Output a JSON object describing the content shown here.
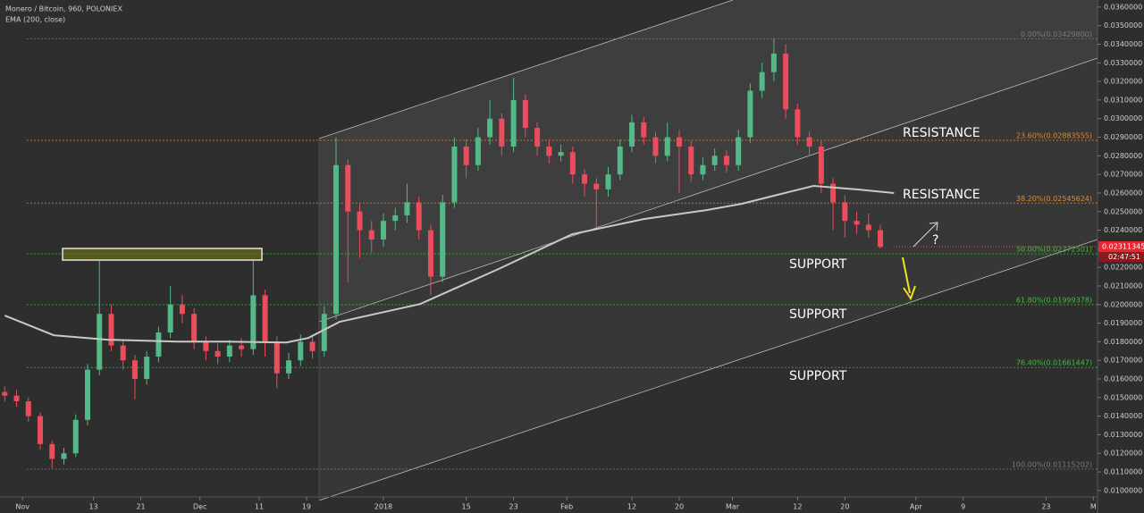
{
  "chart_data": {
    "type": "candlestick",
    "title": "Monero / Bitcoin, 960, POLONIEX",
    "up_color": "#53b987",
    "down_color": "#eb4d5c",
    "candles": {
      "x": [
        -3,
        -1,
        1,
        3,
        5,
        7,
        9,
        11,
        13,
        15,
        17,
        19,
        21,
        23,
        25,
        27,
        29,
        31,
        33,
        35,
        37,
        39,
        41,
        43,
        45,
        47,
        49,
        51,
        53,
        55,
        57,
        59,
        61,
        63,
        65,
        67,
        69,
        71,
        73,
        75,
        77,
        79,
        81,
        83,
        85,
        87,
        89,
        91,
        93,
        95,
        97,
        99,
        101,
        103,
        105,
        107,
        109,
        111,
        113,
        115,
        117,
        119,
        121,
        123,
        125,
        127,
        129,
        131,
        133,
        135,
        137,
        139,
        141,
        143,
        145
      ],
      "open": [
        0.0153,
        0.0151,
        0.0148,
        0.014,
        0.0125,
        0.0117,
        0.012,
        0.0138,
        0.0165,
        0.0195,
        0.0178,
        0.017,
        0.016,
        0.0172,
        0.0185,
        0.02,
        0.0195,
        0.018,
        0.0175,
        0.0172,
        0.0178,
        0.0176,
        0.0205,
        0.018,
        0.0163,
        0.017,
        0.018,
        0.0175,
        0.0195,
        0.0275,
        0.025,
        0.024,
        0.0235,
        0.0245,
        0.0248,
        0.0255,
        0.024,
        0.0215,
        0.0255,
        0.0285,
        0.0275,
        0.029,
        0.03,
        0.0285,
        0.031,
        0.0295,
        0.0285,
        0.028,
        0.0282,
        0.027,
        0.0265,
        0.0262,
        0.027,
        0.0285,
        0.0298,
        0.029,
        0.028,
        0.029,
        0.0285,
        0.027,
        0.0275,
        0.028,
        0.0275,
        0.029,
        0.0315,
        0.0325,
        0.0335,
        0.0305,
        0.029,
        0.0285,
        0.0265,
        0.0255,
        0.0245,
        0.0243,
        0.024
      ],
      "high": [
        0.0156,
        0.0154,
        0.015,
        0.0142,
        0.0127,
        0.0123,
        0.0141,
        0.0168,
        0.0224,
        0.02,
        0.0181,
        0.0173,
        0.0175,
        0.0188,
        0.021,
        0.0205,
        0.0198,
        0.0183,
        0.0179,
        0.0181,
        0.0182,
        0.0224,
        0.0208,
        0.0183,
        0.0174,
        0.0184,
        0.0183,
        0.0199,
        0.029,
        0.0278,
        0.0254,
        0.0245,
        0.0249,
        0.0252,
        0.0265,
        0.0258,
        0.0243,
        0.0259,
        0.029,
        0.0289,
        0.0295,
        0.031,
        0.0303,
        0.0322,
        0.0313,
        0.0298,
        0.0289,
        0.0286,
        0.0285,
        0.0273,
        0.0268,
        0.0274,
        0.0289,
        0.0302,
        0.0301,
        0.0293,
        0.0298,
        0.0294,
        0.0288,
        0.0279,
        0.0284,
        0.0283,
        0.0294,
        0.0319,
        0.033,
        0.0343,
        0.034,
        0.0308,
        0.0293,
        0.0288,
        0.0268,
        0.0259,
        0.025,
        0.0249,
        0.0243
      ],
      "low": [
        0.0148,
        0.0145,
        0.0137,
        0.0122,
        0.0112,
        0.0114,
        0.0118,
        0.0135,
        0.0162,
        0.0175,
        0.0165,
        0.0149,
        0.0157,
        0.0169,
        0.0182,
        0.019,
        0.0176,
        0.017,
        0.0168,
        0.0169,
        0.0172,
        0.0173,
        0.0172,
        0.0155,
        0.016,
        0.0167,
        0.0171,
        0.0172,
        0.0192,
        0.0212,
        0.0225,
        0.0228,
        0.0231,
        0.024,
        0.0244,
        0.0235,
        0.0205,
        0.0212,
        0.0252,
        0.0268,
        0.0272,
        0.0286,
        0.028,
        0.0282,
        0.029,
        0.028,
        0.0276,
        0.0277,
        0.0265,
        0.0258,
        0.024,
        0.0258,
        0.0267,
        0.0282,
        0.0286,
        0.0276,
        0.0277,
        0.026,
        0.0266,
        0.0267,
        0.0272,
        0.0271,
        0.0272,
        0.0287,
        0.0311,
        0.032,
        0.03,
        0.0286,
        0.028,
        0.026,
        0.024,
        0.0236,
        0.0238,
        0.0236,
        0.023
      ],
      "close": [
        0.0151,
        0.0148,
        0.014,
        0.0125,
        0.0117,
        0.012,
        0.0138,
        0.0165,
        0.0195,
        0.0178,
        0.017,
        0.016,
        0.0172,
        0.0185,
        0.02,
        0.0195,
        0.018,
        0.0175,
        0.0172,
        0.0178,
        0.0176,
        0.0205,
        0.018,
        0.0163,
        0.017,
        0.018,
        0.0175,
        0.0195,
        0.0275,
        0.025,
        0.024,
        0.0235,
        0.0245,
        0.0248,
        0.0255,
        0.024,
        0.0215,
        0.0255,
        0.0285,
        0.0275,
        0.029,
        0.03,
        0.0285,
        0.031,
        0.0295,
        0.0285,
        0.028,
        0.0282,
        0.027,
        0.0265,
        0.0262,
        0.027,
        0.0285,
        0.0298,
        0.029,
        0.028,
        0.029,
        0.0285,
        0.027,
        0.0275,
        0.028,
        0.0275,
        0.029,
        0.0315,
        0.0325,
        0.0335,
        0.0305,
        0.029,
        0.0285,
        0.0265,
        0.0255,
        0.0245,
        0.0243,
        0.024,
        0.0231
      ]
    },
    "ema": {
      "name": "EMA (200, close)",
      "color": "#c8c8c8",
      "x": [
        -3.0,
        5.3,
        14.4,
        26.4,
        34.0,
        44.6,
        48.3,
        53.6,
        67.2,
        80.8,
        92.9,
        105.0,
        115.6,
        121.6,
        127.6,
        133.7,
        141.2,
        147.3
      ],
      "values": [
        0.01941,
        0.01835,
        0.01811,
        0.01801,
        0.01801,
        0.01796,
        0.0182,
        0.01907,
        0.02003,
        0.02196,
        0.02378,
        0.0246,
        0.02508,
        0.02542,
        0.0259,
        0.02638,
        0.02619,
        0.026
      ]
    },
    "fib_levels": [
      {
        "label": "0.00%(0.03429800)",
        "value": 0.034298,
        "color": "#7a7a7a"
      },
      {
        "label": "23.60%(0.02883555)",
        "value": 0.02883555,
        "color": "#e08a2c"
      },
      {
        "label": "38.20%(0.02545624)",
        "value": 0.02545624,
        "color": "#e08a2c"
      },
      {
        "label": "50.00%(0.02272501)",
        "value": 0.02272501,
        "color": "#3cc03c"
      },
      {
        "label": "61.80%(0.01999378)",
        "value": 0.01999378,
        "color": "#3cc03c"
      },
      {
        "label": "76.40%(0.01661447)",
        "value": 0.01661447,
        "color": "#3cc03c"
      },
      {
        "label": "100.00%(0.01115202)",
        "value": 0.01115202,
        "color": "#7a7a7a"
      }
    ],
    "annotations": [
      "RESISTANCE",
      "RESISTANCE",
      "SUPPORT",
      "SUPPORT",
      "SUPPORT",
      "?"
    ],
    "last_price": 0.02311345,
    "countdown": "02:47:51",
    "xlim": [
      -3.8,
      181.7
    ],
    "ylim": [
      0.00879,
      0.03638
    ],
    "xticks": [
      {
        "value": 0,
        "label": "Nov"
      },
      {
        "value": 12,
        "label": "13"
      },
      {
        "value": 20,
        "label": "21"
      },
      {
        "value": 30,
        "label": "Dec"
      },
      {
        "value": 40,
        "label": "11"
      },
      {
        "value": 48,
        "label": "19"
      },
      {
        "value": 61,
        "label": "2018"
      },
      {
        "value": 75,
        "label": "15"
      },
      {
        "value": 83,
        "label": "23"
      },
      {
        "value": 92,
        "label": "Feb"
      },
      {
        "value": 103,
        "label": "12"
      },
      {
        "value": 111,
        "label": "20"
      },
      {
        "value": 120,
        "label": "Mar"
      },
      {
        "value": 131,
        "label": "12"
      },
      {
        "value": 139,
        "label": "20"
      },
      {
        "value": 151,
        "label": "Apr"
      },
      {
        "value": 159,
        "label": "9"
      },
      {
        "value": 173,
        "label": "23"
      },
      {
        "value": 181,
        "label": "M"
      }
    ],
    "yticks": [
      {
        "value": 0.01,
        "label": "0.0100000"
      },
      {
        "value": 0.011,
        "label": "0.0110000"
      },
      {
        "value": 0.012,
        "label": "0.0120000"
      },
      {
        "value": 0.013,
        "label": "0.0130000"
      },
      {
        "value": 0.014,
        "label": "0.0140000"
      },
      {
        "value": 0.015,
        "label": "0.0150000"
      },
      {
        "value": 0.016,
        "label": "0.0160000"
      },
      {
        "value": 0.017,
        "label": "0.0170000"
      },
      {
        "value": 0.018,
        "label": "0.0180000"
      },
      {
        "value": 0.019,
        "label": "0.0190000"
      },
      {
        "value": 0.02,
        "label": "0.0200000"
      },
      {
        "value": 0.021,
        "label": "0.0210000"
      },
      {
        "value": 0.022,
        "label": "0.0220000"
      },
      {
        "value": 0.023,
        "label": "0.0230000"
      },
      {
        "value": 0.024,
        "label": "0.0240000"
      },
      {
        "value": 0.025,
        "label": "0.0250000"
      },
      {
        "value": 0.026,
        "label": "0.0260000"
      },
      {
        "value": 0.027,
        "label": "0.0270000"
      },
      {
        "value": 0.028,
        "label": "0.0280000"
      },
      {
        "value": 0.029,
        "label": "0.0290000"
      },
      {
        "value": 0.03,
        "label": "0.0300000"
      },
      {
        "value": 0.031,
        "label": "0.0310000"
      },
      {
        "value": 0.032,
        "label": "0.0320000"
      },
      {
        "value": 0.033,
        "label": "0.0330000"
      },
      {
        "value": 0.034,
        "label": "0.0340000"
      },
      {
        "value": 0.035,
        "label": "0.0350000"
      },
      {
        "value": 0.036,
        "label": "0.0360000"
      }
    ]
  }
}
